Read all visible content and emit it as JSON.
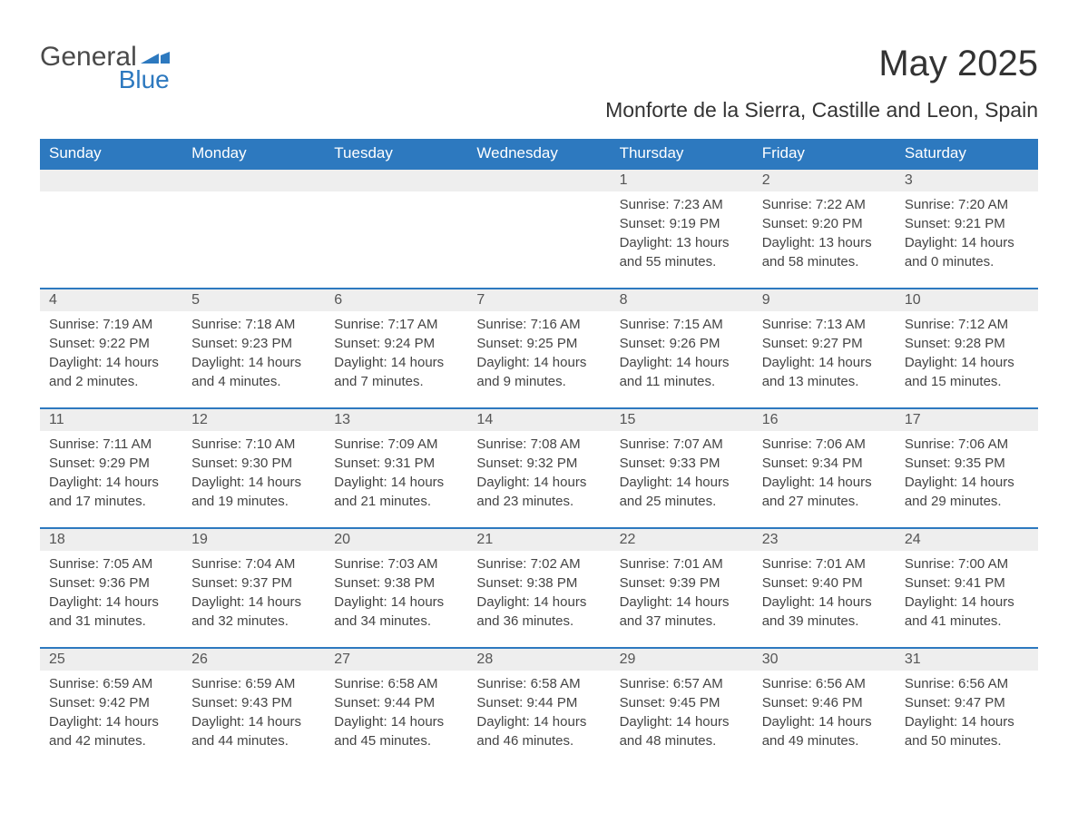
{
  "logo": {
    "textA": "General",
    "textB": "Blue",
    "flag_color": "#2d79bf"
  },
  "title": "May 2025",
  "subtitle": "Monforte de la Sierra, Castille and Leon, Spain",
  "colors": {
    "header_bg": "#2d79bf",
    "header_fg": "#ffffff",
    "daynum_bg": "#eeeeee",
    "row_border": "#2d79bf",
    "text": "#333333"
  },
  "weekdays": [
    "Sunday",
    "Monday",
    "Tuesday",
    "Wednesday",
    "Thursday",
    "Friday",
    "Saturday"
  ],
  "weeks": [
    [
      null,
      null,
      null,
      null,
      {
        "n": "1",
        "sunrise": "7:23 AM",
        "sunset": "9:19 PM",
        "dl1": "Daylight: 13 hours",
        "dl2": "and 55 minutes."
      },
      {
        "n": "2",
        "sunrise": "7:22 AM",
        "sunset": "9:20 PM",
        "dl1": "Daylight: 13 hours",
        "dl2": "and 58 minutes."
      },
      {
        "n": "3",
        "sunrise": "7:20 AM",
        "sunset": "9:21 PM",
        "dl1": "Daylight: 14 hours",
        "dl2": "and 0 minutes."
      }
    ],
    [
      {
        "n": "4",
        "sunrise": "7:19 AM",
        "sunset": "9:22 PM",
        "dl1": "Daylight: 14 hours",
        "dl2": "and 2 minutes."
      },
      {
        "n": "5",
        "sunrise": "7:18 AM",
        "sunset": "9:23 PM",
        "dl1": "Daylight: 14 hours",
        "dl2": "and 4 minutes."
      },
      {
        "n": "6",
        "sunrise": "7:17 AM",
        "sunset": "9:24 PM",
        "dl1": "Daylight: 14 hours",
        "dl2": "and 7 minutes."
      },
      {
        "n": "7",
        "sunrise": "7:16 AM",
        "sunset": "9:25 PM",
        "dl1": "Daylight: 14 hours",
        "dl2": "and 9 minutes."
      },
      {
        "n": "8",
        "sunrise": "7:15 AM",
        "sunset": "9:26 PM",
        "dl1": "Daylight: 14 hours",
        "dl2": "and 11 minutes."
      },
      {
        "n": "9",
        "sunrise": "7:13 AM",
        "sunset": "9:27 PM",
        "dl1": "Daylight: 14 hours",
        "dl2": "and 13 minutes."
      },
      {
        "n": "10",
        "sunrise": "7:12 AM",
        "sunset": "9:28 PM",
        "dl1": "Daylight: 14 hours",
        "dl2": "and 15 minutes."
      }
    ],
    [
      {
        "n": "11",
        "sunrise": "7:11 AM",
        "sunset": "9:29 PM",
        "dl1": "Daylight: 14 hours",
        "dl2": "and 17 minutes."
      },
      {
        "n": "12",
        "sunrise": "7:10 AM",
        "sunset": "9:30 PM",
        "dl1": "Daylight: 14 hours",
        "dl2": "and 19 minutes."
      },
      {
        "n": "13",
        "sunrise": "7:09 AM",
        "sunset": "9:31 PM",
        "dl1": "Daylight: 14 hours",
        "dl2": "and 21 minutes."
      },
      {
        "n": "14",
        "sunrise": "7:08 AM",
        "sunset": "9:32 PM",
        "dl1": "Daylight: 14 hours",
        "dl2": "and 23 minutes."
      },
      {
        "n": "15",
        "sunrise": "7:07 AM",
        "sunset": "9:33 PM",
        "dl1": "Daylight: 14 hours",
        "dl2": "and 25 minutes."
      },
      {
        "n": "16",
        "sunrise": "7:06 AM",
        "sunset": "9:34 PM",
        "dl1": "Daylight: 14 hours",
        "dl2": "and 27 minutes."
      },
      {
        "n": "17",
        "sunrise": "7:06 AM",
        "sunset": "9:35 PM",
        "dl1": "Daylight: 14 hours",
        "dl2": "and 29 minutes."
      }
    ],
    [
      {
        "n": "18",
        "sunrise": "7:05 AM",
        "sunset": "9:36 PM",
        "dl1": "Daylight: 14 hours",
        "dl2": "and 31 minutes."
      },
      {
        "n": "19",
        "sunrise": "7:04 AM",
        "sunset": "9:37 PM",
        "dl1": "Daylight: 14 hours",
        "dl2": "and 32 minutes."
      },
      {
        "n": "20",
        "sunrise": "7:03 AM",
        "sunset": "9:38 PM",
        "dl1": "Daylight: 14 hours",
        "dl2": "and 34 minutes."
      },
      {
        "n": "21",
        "sunrise": "7:02 AM",
        "sunset": "9:38 PM",
        "dl1": "Daylight: 14 hours",
        "dl2": "and 36 minutes."
      },
      {
        "n": "22",
        "sunrise": "7:01 AM",
        "sunset": "9:39 PM",
        "dl1": "Daylight: 14 hours",
        "dl2": "and 37 minutes."
      },
      {
        "n": "23",
        "sunrise": "7:01 AM",
        "sunset": "9:40 PM",
        "dl1": "Daylight: 14 hours",
        "dl2": "and 39 minutes."
      },
      {
        "n": "24",
        "sunrise": "7:00 AM",
        "sunset": "9:41 PM",
        "dl1": "Daylight: 14 hours",
        "dl2": "and 41 minutes."
      }
    ],
    [
      {
        "n": "25",
        "sunrise": "6:59 AM",
        "sunset": "9:42 PM",
        "dl1": "Daylight: 14 hours",
        "dl2": "and 42 minutes."
      },
      {
        "n": "26",
        "sunrise": "6:59 AM",
        "sunset": "9:43 PM",
        "dl1": "Daylight: 14 hours",
        "dl2": "and 44 minutes."
      },
      {
        "n": "27",
        "sunrise": "6:58 AM",
        "sunset": "9:44 PM",
        "dl1": "Daylight: 14 hours",
        "dl2": "and 45 minutes."
      },
      {
        "n": "28",
        "sunrise": "6:58 AM",
        "sunset": "9:44 PM",
        "dl1": "Daylight: 14 hours",
        "dl2": "and 46 minutes."
      },
      {
        "n": "29",
        "sunrise": "6:57 AM",
        "sunset": "9:45 PM",
        "dl1": "Daylight: 14 hours",
        "dl2": "and 48 minutes."
      },
      {
        "n": "30",
        "sunrise": "6:56 AM",
        "sunset": "9:46 PM",
        "dl1": "Daylight: 14 hours",
        "dl2": "and 49 minutes."
      },
      {
        "n": "31",
        "sunrise": "6:56 AM",
        "sunset": "9:47 PM",
        "dl1": "Daylight: 14 hours",
        "dl2": "and 50 minutes."
      }
    ]
  ],
  "labels": {
    "sunrise_prefix": "Sunrise: ",
    "sunset_prefix": "Sunset: "
  }
}
